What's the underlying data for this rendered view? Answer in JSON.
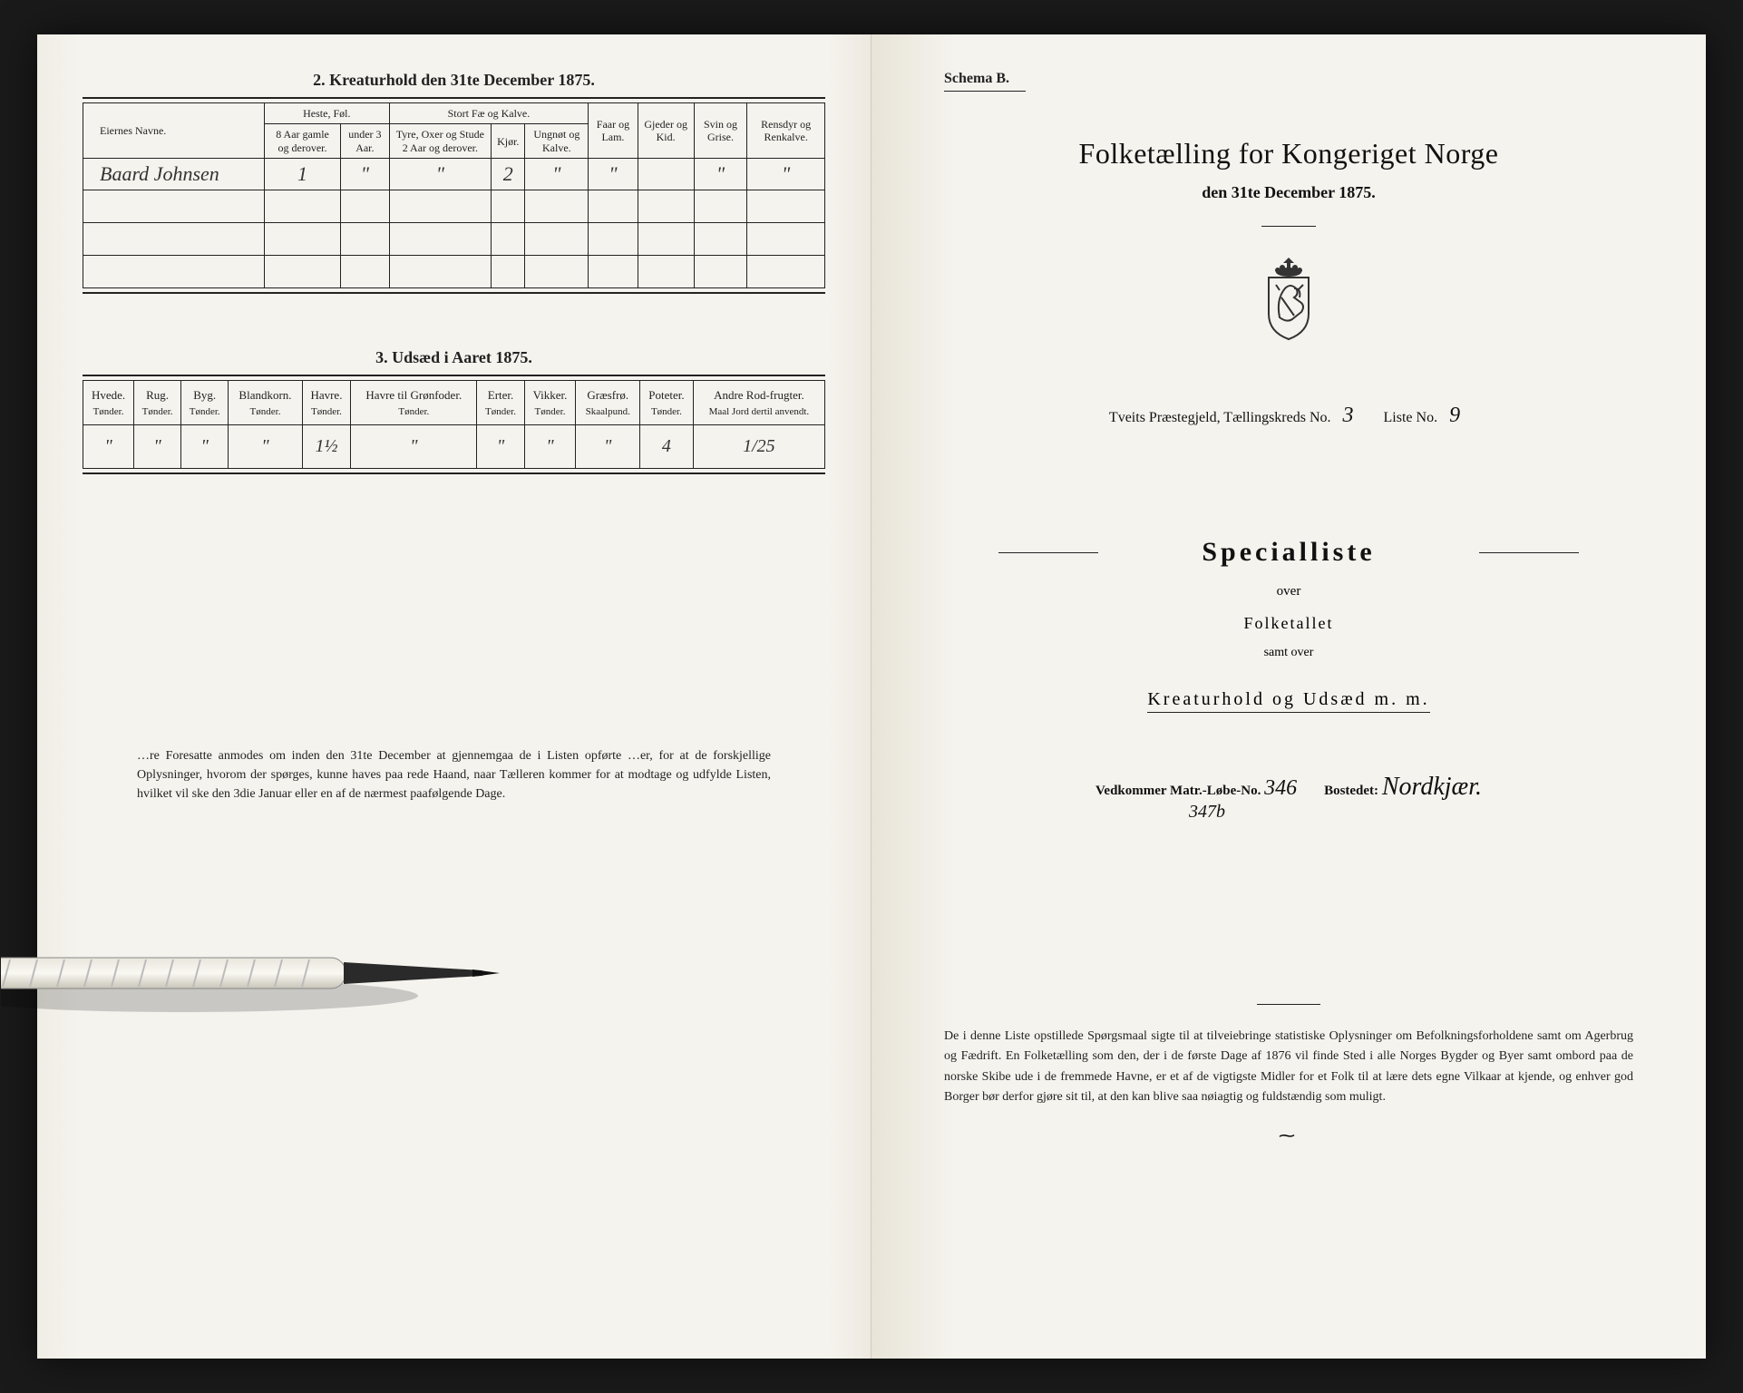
{
  "left": {
    "section1_title": "2.  Kreaturhold den 31te December 1875.",
    "table1": {
      "headers": {
        "name": "Eiernes Navne.",
        "group_heste": "Heste, Føl.",
        "group_fae": "Stort Fæ og Kalve.",
        "h1": "8 Aar gamle og derover.",
        "h2": "under 3 Aar.",
        "h3": "Tyre, Oxer og Stude 2 Aar og derover.",
        "h4": "Kjør.",
        "h5": "Ungnøt og Kalve.",
        "h6": "Faar og Lam.",
        "h7": "Gjeder og Kid.",
        "h8": "Svin og Grise.",
        "h9": "Rensdyr og Renkalve."
      },
      "rows": [
        {
          "name": "Baard Johnsen",
          "c1": "1",
          "c2": "\"",
          "c3": "\"",
          "c4": "2",
          "c5": "\"",
          "c6": "\"",
          "c7": "",
          "c8": "\"",
          "c9": "\""
        }
      ]
    },
    "section2_title": "3.  Udsæd i Aaret 1875.",
    "table2": {
      "headers": [
        "Hvede.",
        "Rug.",
        "Byg.",
        "Blandkorn.",
        "Havre.",
        "Havre til Grønfoder.",
        "Erter.",
        "Vikker.",
        "Græsfrø.",
        "Poteter.",
        "Andre Rod-frugter."
      ],
      "subheaders": [
        "Tønder.",
        "Tønder.",
        "Tønder.",
        "Tønder.",
        "Tønder.",
        "Tønder.",
        "Tønder.",
        "Tønder.",
        "Skaalpund.",
        "Tønder.",
        "Maal Jord dertil anvendt."
      ],
      "row": [
        "\"",
        "\"",
        "\"",
        "\"",
        "1½",
        "\"",
        "\"",
        "\"",
        "\"",
        "4",
        "1/25"
      ]
    },
    "footnote": "…re Foresatte anmodes om inden den 31te December at gjennemgaa de i Listen opførte …er, for at de forskjellige Oplysninger, hvorom der spørges, kunne haves paa rede Haand, naar Tælleren kommer for at modtage og udfylde Listen, hvilket vil ske den 3die Januar eller en af de nærmest paafølgende Dage."
  },
  "right": {
    "schema": "Schema B.",
    "title": "Folketælling for Kongeriget Norge",
    "subtitle": "den 31te December 1875.",
    "district_prefix": "Tveits Præstegjeld,  Tællingskreds No.",
    "district_no": "3",
    "liste_label": "Liste No.",
    "liste_no": "9",
    "special": "Specialliste",
    "over": "over",
    "folketallet": "Folketallet",
    "samt": "samt over",
    "kreatur": "Kreaturhold og Udsæd m. m.",
    "matr_label": "Vedkommer Matr.-Løbe-No.",
    "matr_no": "346",
    "matr_no2": "347b",
    "bosted_label": "Bostedet:",
    "bosted": "Nordkjær.",
    "foot": "De i denne Liste opstillede Spørgsmaal sigte til at tilveiebringe statistiske Oplysninger om Befolkningsforholdene samt om Agerbrug og Fædrift.  En Folketælling som den, der i de første Dage af 1876 vil finde Sted i alle Norges Bygder og Byer samt ombord paa de norske Skibe ude i de fremmede Havne, er et af de vigtigste Midler for et Folk til at lære dets egne Vilkaar at kjende, og enhver god Borger bør derfor gjøre sit til, at den kan blive saa nøiagtig og fuldstændig som muligt."
  },
  "colors": {
    "paper": "#f5f3ee",
    "ink": "#222222",
    "bg": "#1a1a1a"
  }
}
